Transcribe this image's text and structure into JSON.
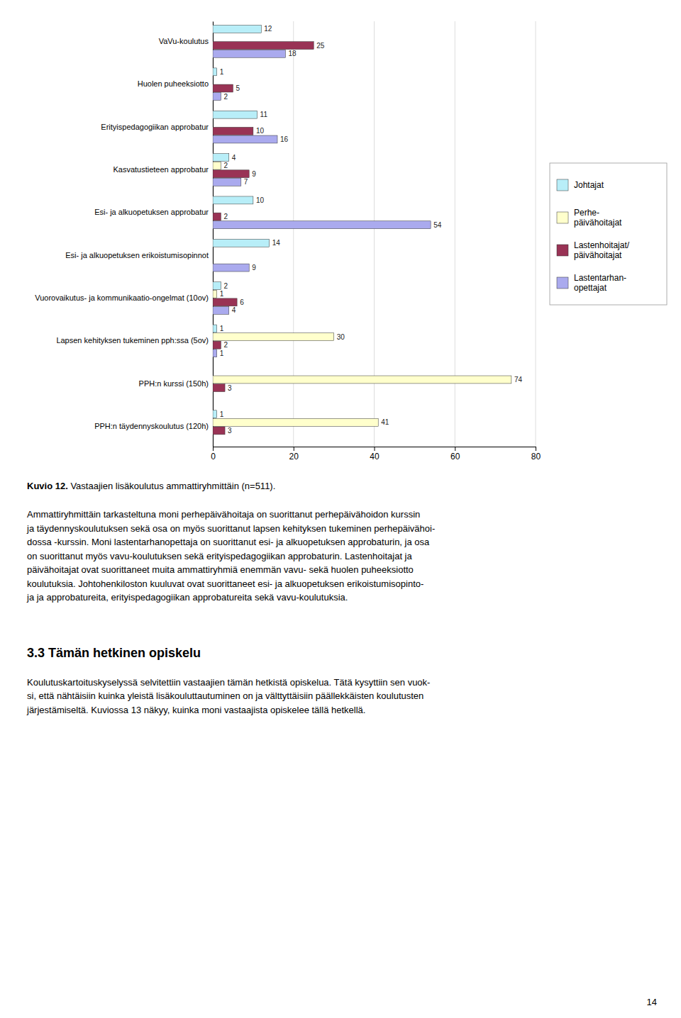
{
  "chart_data": {
    "type": "bar",
    "orientation": "horizontal",
    "title": "Kuvio 12. Vastaajien lisäkoulutus ammattiryhmittäin (n=511).",
    "categories": [
      "VaVu-koulutus",
      "Huolen puheeksiotto",
      "Erityispedagogiikan approbatur",
      "Kasvatustieteen approbatur",
      "Esi- ja alkuopetuksen approbatur",
      "Esi- ja alkuopetuksen erikoistumisopinnot",
      "Vuorovaikutus- ja kommunikaatio-ongelmat (10ov)",
      "Lapsen kehityksen tukeminen pph:ssa (5ov)",
      "PPH:n kurssi (150h)",
      "PPH:n täydennyskoulutus (120h)"
    ],
    "series": [
      {
        "name": "Johtajat",
        "color": "#b8eef8",
        "values": [
          12,
          1,
          11,
          4,
          10,
          14,
          2,
          1,
          0,
          1
        ]
      },
      {
        "name": "Perhe-\npäivähoitajat",
        "color": "#ffffcc",
        "values": [
          0,
          0,
          0,
          2,
          0,
          0,
          1,
          30,
          74,
          41
        ]
      },
      {
        "name": "Lastenhoitajat/\npäivähoitajat",
        "color": "#993355",
        "values": [
          25,
          5,
          10,
          9,
          2,
          0,
          6,
          2,
          3,
          3
        ]
      },
      {
        "name": "Lastentarhan-\nopettajat",
        "color": "#aaaaee",
        "values": [
          18,
          2,
          16,
          7,
          54,
          9,
          4,
          1,
          0,
          0
        ]
      }
    ],
    "xlim": [
      0,
      80
    ],
    "xticks": [
      0,
      20,
      40,
      60,
      80
    ],
    "grid": true,
    "data_labels": true,
    "legend": "right"
  },
  "page_text": {
    "body": "Ammattiryhmittäin tarkasteltuna moni perhepäivähoitaja on suorittanut perhepäivähoidon kurssin\nja täydennyskoulutuksen sekä osa on myös suorittanut lapsen kehityksen tukeminen perhepäivähoi-\ndossa -kurssin. Moni lastentarhanopettaja on suorittanut esi- ja alkuopetuksen approbaturin, ja osa\non suorittanut myös vavu-koulutuksen sekä erityispedagogiikan approbaturin. Lastenhoitajat ja\npäivähoitajat ovat suorittaneet muita ammattiryhmiä enemmän vavu- sekä huolen puheeksiotto\nkoulutuksia. Johtohenkiloston kuuluvat ovat suorittaneet esi- ja alkuopetuksen erikoistumisopinto-\nja ja approbatureita, erityispedagogiikan approbatureita sekä vavu-koulutuksia.",
    "heading": "3.3 Tämän hetkinen opiskelu",
    "section_body": "Koulutuskartoituskyselyssä selvitettiin vastaajien tämän hetkistä opiskelua. Tätä kysyttiin sen vuok-\nsi, että nähtäisiin kuinka yleistä lisäkouluttautuminen on ja välttyttäisiin päällekkäisten koulutusten\njärjestämiseltä. Kuviossa 13 näkyy, kuinka moni vastaajista opiskelee tällä hetkellä.",
    "page_number": "14"
  }
}
